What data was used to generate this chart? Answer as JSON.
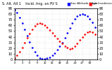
{
  "title": "S. Alt. Alt 1",
  "legend_blue_label": "Sun Altitude Angle",
  "legend_red_label": "Sun Incidence Angle on PV Panels",
  "background": "#ffffff",
  "grid_color": "#aaaaaa",
  "blue_color": "#0000ff",
  "red_color": "#ff0000",
  "ylim": [
    0,
    90
  ],
  "xlim": [
    0,
    33
  ],
  "y_ticks": [
    0,
    10,
    20,
    30,
    40,
    50,
    60,
    70,
    80,
    90
  ],
  "blue_x": [
    0,
    1,
    2,
    3,
    4,
    5,
    6,
    7,
    8,
    9,
    10,
    11,
    12,
    13,
    14,
    15,
    16,
    17,
    18,
    19,
    20,
    21,
    22,
    23,
    24,
    25,
    26,
    27,
    28,
    29,
    30,
    31,
    32
  ],
  "blue_y": [
    88,
    82,
    74,
    64,
    53,
    42,
    31,
    21,
    13,
    7,
    3,
    1,
    1,
    2,
    4,
    7,
    11,
    17,
    23,
    30,
    38,
    47,
    56,
    64,
    71,
    76,
    79,
    80,
    79,
    76,
    71,
    65,
    57
  ],
  "red_x": [
    0,
    1,
    2,
    3,
    4,
    5,
    6,
    7,
    8,
    9,
    10,
    11,
    12,
    13,
    14,
    15,
    16,
    17,
    18,
    19,
    20,
    21,
    22,
    23,
    24,
    25,
    26,
    27,
    28,
    29,
    30,
    31,
    32
  ],
  "red_y": [
    3,
    7,
    13,
    21,
    30,
    38,
    46,
    53,
    59,
    63,
    64,
    63,
    61,
    57,
    52,
    47,
    42,
    37,
    32,
    28,
    24,
    21,
    19,
    20,
    23,
    28,
    34,
    40,
    45,
    48,
    49,
    48,
    45
  ]
}
